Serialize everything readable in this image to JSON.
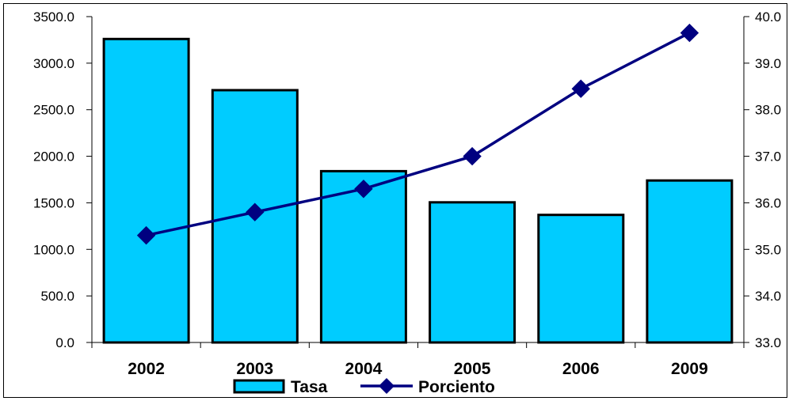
{
  "colors": {
    "bar": "#00CCFF",
    "line": "#000080",
    "axis": "#000000"
  },
  "chart_data": {
    "type": "bar",
    "categories": [
      "2002",
      "2003",
      "2004",
      "2005",
      "2006",
      "2009"
    ],
    "series": [
      {
        "name": "Tasa",
        "type": "bar",
        "axis": "left",
        "values": [
          3260,
          2710,
          1840,
          1505,
          1370,
          1740
        ]
      },
      {
        "name": "Porciento",
        "type": "line",
        "axis": "right",
        "marker": "diamond",
        "values": [
          35.3,
          35.8,
          36.3,
          37.0,
          38.45,
          39.65
        ]
      }
    ],
    "y_left": {
      "ylim": [
        0,
        3500
      ],
      "ticks": [
        "0.0",
        "500.0",
        "1000.0",
        "1500.0",
        "2000.0",
        "2500.0",
        "3000.0",
        "3500.0"
      ]
    },
    "y_right": {
      "ylim": [
        33,
        40
      ],
      "ticks": [
        "33.0",
        "34.0",
        "35.0",
        "36.0",
        "37.0",
        "38.0",
        "39.0",
        "40.0"
      ]
    },
    "legend": {
      "placement": "bottom",
      "entries": [
        "Tasa",
        "Porciento"
      ]
    },
    "grid": false,
    "title": "",
    "xlabel": "",
    "ylabel": ""
  }
}
